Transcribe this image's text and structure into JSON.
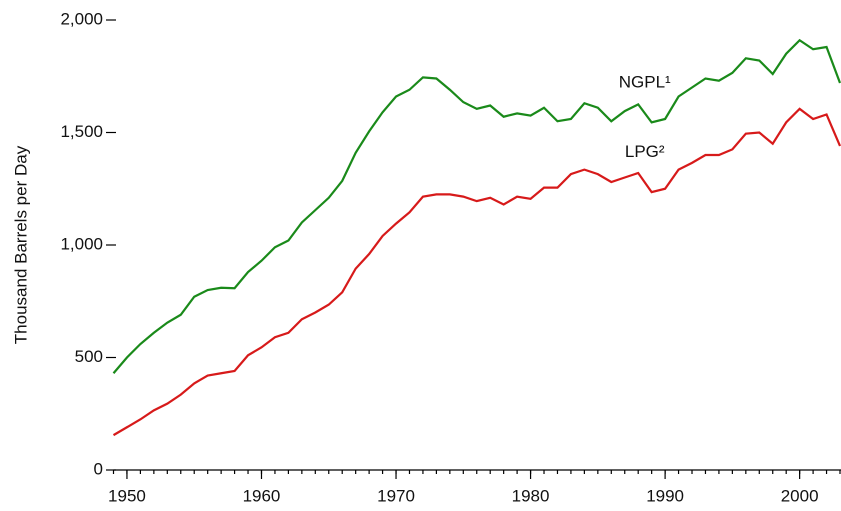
{
  "chart_data": {
    "type": "line",
    "y_label": "Thousand Barrels per Day",
    "x": [
      1949,
      1950,
      1951,
      1952,
      1953,
      1954,
      1955,
      1956,
      1957,
      1958,
      1959,
      1960,
      1961,
      1962,
      1963,
      1964,
      1965,
      1966,
      1967,
      1968,
      1969,
      1970,
      1971,
      1972,
      1973,
      1974,
      1975,
      1976,
      1977,
      1978,
      1979,
      1980,
      1981,
      1982,
      1983,
      1984,
      1985,
      1986,
      1987,
      1988,
      1989,
      1990,
      1991,
      1992,
      1993,
      1994,
      1995,
      1996,
      1997,
      1998,
      1999,
      2000,
      2001,
      2002,
      2003
    ],
    "series": [
      {
        "name": "NGPL¹",
        "color": "#1a8a1a",
        "values": [
          430,
          500,
          560,
          610,
          655,
          690,
          770,
          800,
          810,
          808,
          880,
          930,
          990,
          1020,
          1100,
          1155,
          1210,
          1285,
          1410,
          1505,
          1590,
          1660,
          1690,
          1745,
          1740,
          1690,
          1635,
          1605,
          1620,
          1570,
          1585,
          1575,
          1610,
          1550,
          1560,
          1630,
          1610,
          1550,
          1595,
          1625,
          1545,
          1560,
          1660,
          1700,
          1740,
          1730,
          1765,
          1830,
          1820,
          1760,
          1850,
          1910,
          1870,
          1880,
          1720
        ]
      },
      {
        "name": "LPG²",
        "color": "#d71a1a",
        "values": [
          155,
          190,
          225,
          265,
          295,
          335,
          385,
          420,
          430,
          440,
          510,
          545,
          590,
          610,
          670,
          700,
          735,
          790,
          895,
          960,
          1040,
          1095,
          1145,
          1215,
          1225,
          1225,
          1215,
          1195,
          1210,
          1180,
          1215,
          1205,
          1255,
          1255,
          1315,
          1335,
          1315,
          1280,
          1300,
          1320,
          1235,
          1250,
          1335,
          1365,
          1400,
          1400,
          1425,
          1495,
          1500,
          1450,
          1545,
          1605,
          1560,
          1580,
          1440
        ]
      }
    ],
    "xlim": [
      1949,
      2003
    ],
    "xticks": [
      1950,
      1960,
      1970,
      1980,
      1990,
      2000
    ],
    "ylim": [
      0,
      2000
    ],
    "yticks": [
      0,
      500,
      {
        "value": 1000,
        "label": "1,000"
      },
      {
        "value": 1500,
        "label": "1,500"
      },
      {
        "value": 2000,
        "label": "2,000"
      }
    ]
  }
}
